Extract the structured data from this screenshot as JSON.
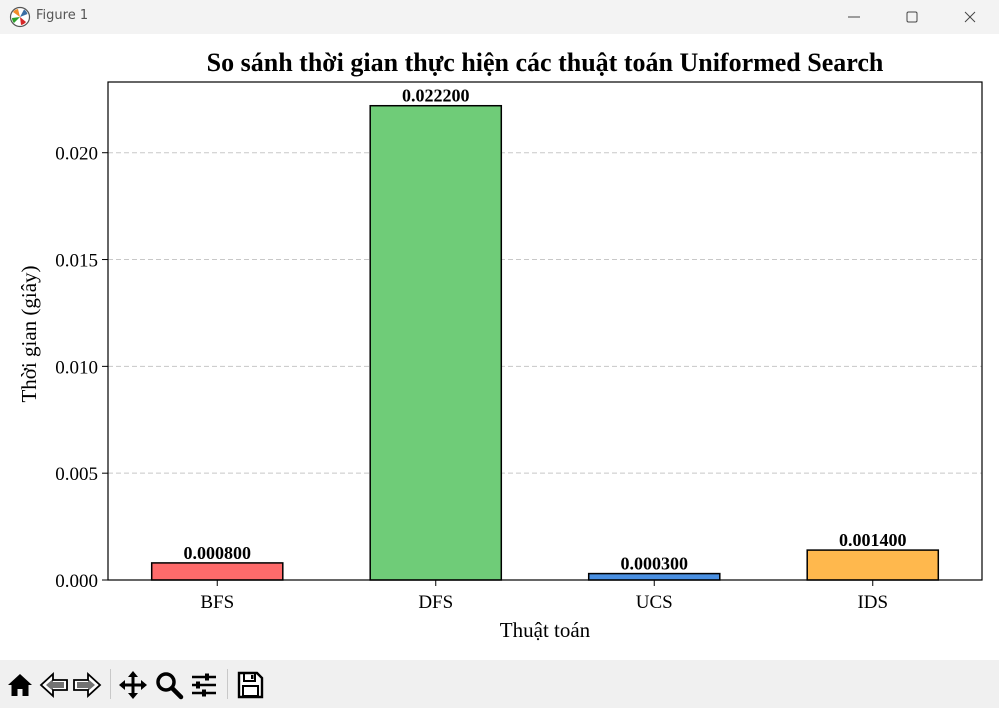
{
  "window": {
    "title": "Figure 1",
    "icons": {
      "app": "matplotlib-logo-icon",
      "minimize": "minimize-icon",
      "maximize": "maximize-icon",
      "close": "close-icon"
    }
  },
  "toolbar": {
    "tools": [
      "home-icon",
      "back-arrow-icon",
      "forward-arrow-icon",
      "pan-move-icon",
      "zoom-magnifier-icon",
      "configure-subplots-icon",
      "save-disk-icon"
    ]
  },
  "chart_data": {
    "type": "bar",
    "title": "So sánh thời gian thực hiện các thuật toán Uniformed Search",
    "xlabel": "Thuật toán",
    "ylabel": "Thời gian (giây)",
    "categories": [
      "BFS",
      "DFS",
      "UCS",
      "IDS"
    ],
    "values": [
      0.0008,
      0.0222,
      0.0003,
      0.0014
    ],
    "value_labels": [
      "0.000800",
      "0.022200",
      "0.000300",
      "0.001400"
    ],
    "colors": [
      "#ff6b6b",
      "#6fcc78",
      "#4a90e2",
      "#ffb84d"
    ],
    "yticks": [
      0.0,
      0.005,
      0.01,
      0.015,
      0.02
    ],
    "ytick_labels": [
      "0.000",
      "0.005",
      "0.010",
      "0.015",
      "0.020"
    ],
    "ylim": [
      0,
      0.02331
    ],
    "grid": "y-dashed",
    "legend": "none"
  }
}
